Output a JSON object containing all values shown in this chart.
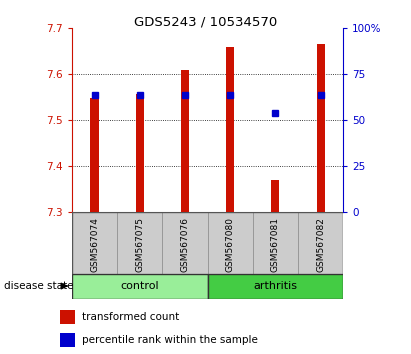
{
  "title": "GDS5243 / 10534570",
  "samples": [
    "GSM567074",
    "GSM567075",
    "GSM567076",
    "GSM567080",
    "GSM567081",
    "GSM567082"
  ],
  "bar_values": [
    7.549,
    7.558,
    7.61,
    7.66,
    7.37,
    7.665
  ],
  "percentile_values": [
    64,
    64,
    64,
    64,
    54,
    64
  ],
  "bar_base": 7.3,
  "ylim_left": [
    7.3,
    7.7
  ],
  "ylim_right": [
    0,
    100
  ],
  "yticks_left": [
    7.3,
    7.4,
    7.5,
    7.6,
    7.7
  ],
  "yticks_right": [
    0,
    25,
    50,
    75,
    100
  ],
  "ytick_labels_right": [
    "0",
    "25",
    "50",
    "75",
    "100%"
  ],
  "bar_color": "#cc1100",
  "percentile_color": "#0000cc",
  "control_color": "#99ee99",
  "arthritis_color": "#44cc44",
  "group_bg_color": "#cccccc",
  "label_control": "control",
  "label_arthritis": "arthritis",
  "disease_state_label": "disease state",
  "legend_bar_label": "transformed count",
  "legend_pct_label": "percentile rank within the sample",
  "bar_width": 0.18
}
